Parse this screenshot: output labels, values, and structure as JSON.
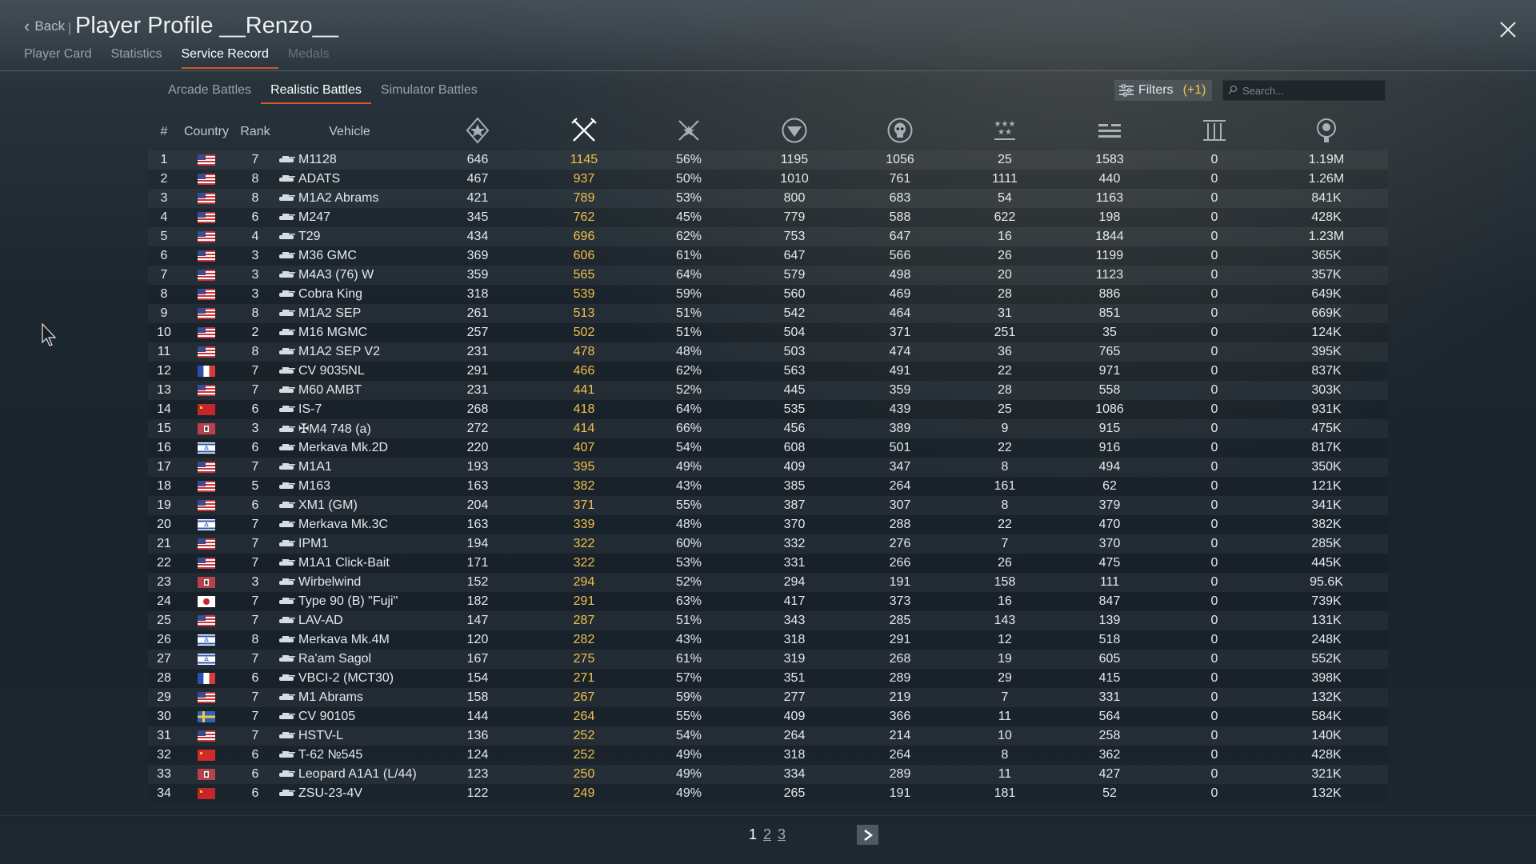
{
  "header": {
    "back_label": "Back",
    "separator": "|",
    "title": "Player Profile __Renzo__",
    "tabs": [
      {
        "label": "Player Card",
        "state": "normal"
      },
      {
        "label": "Statistics",
        "state": "normal"
      },
      {
        "label": "Service Record",
        "state": "active"
      },
      {
        "label": "Medals",
        "state": "disabled"
      }
    ]
  },
  "battle_tabs": [
    "Arcade Battles",
    "Realistic Battles",
    "Simulator Battles"
  ],
  "active_battle_tab": 1,
  "filters": {
    "label": "Filters",
    "count": "(+1)"
  },
  "search": {
    "placeholder": "Search..."
  },
  "columns": {
    "num": "#",
    "country": "Country",
    "rank": "Rank",
    "vehicle": "Vehicle",
    "icons": [
      "victories-icon",
      "battles-icon",
      "win-rate-icon",
      "respawns-icon",
      "deaths-icon",
      "air-targets-destroyed-icon",
      "ground-targets-destroyed-icon",
      "naval-targets-destroyed-icon",
      "silver-lions-icon"
    ]
  },
  "rows": [
    {
      "num": "1",
      "flag": "usa",
      "rank": "7",
      "vehicle": "M1128",
      "v": "646",
      "b": "1145",
      "w": "56%",
      "r": "1195",
      "d": "1056",
      "a": "25",
      "g": "1583",
      "n": "0",
      "s": "1.19M"
    },
    {
      "num": "2",
      "flag": "usa",
      "rank": "8",
      "vehicle": "ADATS",
      "v": "467",
      "b": "937",
      "w": "50%",
      "r": "1010",
      "d": "761",
      "a": "1111",
      "g": "440",
      "n": "0",
      "s": "1.26M"
    },
    {
      "num": "3",
      "flag": "usa",
      "rank": "8",
      "vehicle": "M1A2 Abrams",
      "v": "421",
      "b": "789",
      "w": "53%",
      "r": "800",
      "d": "683",
      "a": "54",
      "g": "1163",
      "n": "0",
      "s": "841K"
    },
    {
      "num": "4",
      "flag": "usa",
      "rank": "6",
      "vehicle": "M247",
      "v": "345",
      "b": "762",
      "w": "45%",
      "r": "779",
      "d": "588",
      "a": "622",
      "g": "198",
      "n": "0",
      "s": "428K"
    },
    {
      "num": "5",
      "flag": "usa",
      "rank": "4",
      "vehicle": "T29",
      "v": "434",
      "b": "696",
      "w": "62%",
      "r": "753",
      "d": "647",
      "a": "16",
      "g": "1844",
      "n": "0",
      "s": "1.23M"
    },
    {
      "num": "6",
      "flag": "usa",
      "rank": "3",
      "vehicle": "M36 GMC",
      "v": "369",
      "b": "606",
      "w": "61%",
      "r": "647",
      "d": "566",
      "a": "26",
      "g": "1199",
      "n": "0",
      "s": "365K"
    },
    {
      "num": "7",
      "flag": "usa",
      "rank": "3",
      "vehicle": "M4A3 (76) W",
      "v": "359",
      "b": "565",
      "w": "64%",
      "r": "579",
      "d": "498",
      "a": "20",
      "g": "1123",
      "n": "0",
      "s": "357K"
    },
    {
      "num": "8",
      "flag": "usa",
      "rank": "3",
      "vehicle": "Cobra King",
      "v": "318",
      "b": "539",
      "w": "59%",
      "r": "560",
      "d": "469",
      "a": "28",
      "g": "886",
      "n": "0",
      "s": "649K"
    },
    {
      "num": "9",
      "flag": "usa",
      "rank": "8",
      "vehicle": "M1A2 SEP",
      "v": "261",
      "b": "513",
      "w": "51%",
      "r": "542",
      "d": "464",
      "a": "31",
      "g": "851",
      "n": "0",
      "s": "669K"
    },
    {
      "num": "10",
      "flag": "usa",
      "rank": "2",
      "vehicle": "M16 MGMC",
      "v": "257",
      "b": "502",
      "w": "51%",
      "r": "504",
      "d": "371",
      "a": "251",
      "g": "35",
      "n": "0",
      "s": "124K"
    },
    {
      "num": "11",
      "flag": "usa",
      "rank": "8",
      "vehicle": "M1A2 SEP V2",
      "v": "231",
      "b": "478",
      "w": "48%",
      "r": "503",
      "d": "474",
      "a": "36",
      "g": "765",
      "n": "0",
      "s": "395K"
    },
    {
      "num": "12",
      "flag": "france",
      "rank": "7",
      "vehicle": "CV 9035NL",
      "v": "291",
      "b": "466",
      "w": "62%",
      "r": "563",
      "d": "491",
      "a": "22",
      "g": "971",
      "n": "0",
      "s": "837K"
    },
    {
      "num": "13",
      "flag": "usa",
      "rank": "7",
      "vehicle": "M60 AMBT",
      "v": "231",
      "b": "441",
      "w": "52%",
      "r": "445",
      "d": "359",
      "a": "28",
      "g": "558",
      "n": "0",
      "s": "303K"
    },
    {
      "num": "14",
      "flag": "ussr",
      "rank": "6",
      "vehicle": "IS-7",
      "v": "268",
      "b": "418",
      "w": "64%",
      "r": "535",
      "d": "439",
      "a": "25",
      "g": "1086",
      "n": "0",
      "s": "931K"
    },
    {
      "num": "15",
      "flag": "germany",
      "rank": "3",
      "vehicle": "✠M4 748 (a)",
      "v": "272",
      "b": "414",
      "w": "66%",
      "r": "456",
      "d": "389",
      "a": "9",
      "g": "915",
      "n": "0",
      "s": "475K"
    },
    {
      "num": "16",
      "flag": "israel",
      "rank": "6",
      "vehicle": "Merkava Mk.2D",
      "v": "220",
      "b": "407",
      "w": "54%",
      "r": "608",
      "d": "501",
      "a": "22",
      "g": "916",
      "n": "0",
      "s": "817K"
    },
    {
      "num": "17",
      "flag": "usa",
      "rank": "7",
      "vehicle": "M1A1",
      "v": "193",
      "b": "395",
      "w": "49%",
      "r": "409",
      "d": "347",
      "a": "8",
      "g": "494",
      "n": "0",
      "s": "350K"
    },
    {
      "num": "18",
      "flag": "usa",
      "rank": "5",
      "vehicle": "M163",
      "v": "163",
      "b": "382",
      "w": "43%",
      "r": "385",
      "d": "264",
      "a": "161",
      "g": "62",
      "n": "0",
      "s": "121K"
    },
    {
      "num": "19",
      "flag": "usa",
      "rank": "6",
      "vehicle": "XM1 (GM)",
      "v": "204",
      "b": "371",
      "w": "55%",
      "r": "387",
      "d": "307",
      "a": "8",
      "g": "379",
      "n": "0",
      "s": "341K"
    },
    {
      "num": "20",
      "flag": "israel",
      "rank": "7",
      "vehicle": "Merkava Mk.3C",
      "v": "163",
      "b": "339",
      "w": "48%",
      "r": "370",
      "d": "288",
      "a": "22",
      "g": "470",
      "n": "0",
      "s": "382K"
    },
    {
      "num": "21",
      "flag": "usa",
      "rank": "7",
      "vehicle": "IPM1",
      "v": "194",
      "b": "322",
      "w": "60%",
      "r": "332",
      "d": "276",
      "a": "7",
      "g": "370",
      "n": "0",
      "s": "285K"
    },
    {
      "num": "22",
      "flag": "usa",
      "rank": "7",
      "vehicle": "M1A1 Click-Bait",
      "v": "171",
      "b": "322",
      "w": "53%",
      "r": "331",
      "d": "266",
      "a": "26",
      "g": "475",
      "n": "0",
      "s": "445K"
    },
    {
      "num": "23",
      "flag": "germany",
      "rank": "3",
      "vehicle": "Wirbelwind",
      "v": "152",
      "b": "294",
      "w": "52%",
      "r": "294",
      "d": "191",
      "a": "158",
      "g": "111",
      "n": "0",
      "s": "95.6K"
    },
    {
      "num": "24",
      "flag": "japan",
      "rank": "7",
      "vehicle": "Type 90 (B) \"Fuji\"",
      "v": "182",
      "b": "291",
      "w": "63%",
      "r": "417",
      "d": "373",
      "a": "16",
      "g": "847",
      "n": "0",
      "s": "739K"
    },
    {
      "num": "25",
      "flag": "usa",
      "rank": "7",
      "vehicle": "LAV-AD",
      "v": "147",
      "b": "287",
      "w": "51%",
      "r": "343",
      "d": "285",
      "a": "143",
      "g": "139",
      "n": "0",
      "s": "131K"
    },
    {
      "num": "26",
      "flag": "israel",
      "rank": "8",
      "vehicle": "Merkava Mk.4M",
      "v": "120",
      "b": "282",
      "w": "43%",
      "r": "318",
      "d": "291",
      "a": "12",
      "g": "518",
      "n": "0",
      "s": "248K"
    },
    {
      "num": "27",
      "flag": "israel",
      "rank": "7",
      "vehicle": "Ra'am Sagol",
      "v": "167",
      "b": "275",
      "w": "61%",
      "r": "319",
      "d": "268",
      "a": "19",
      "g": "605",
      "n": "0",
      "s": "552K"
    },
    {
      "num": "28",
      "flag": "france",
      "rank": "6",
      "vehicle": "VBCI-2 (MCT30)",
      "v": "154",
      "b": "271",
      "w": "57%",
      "r": "351",
      "d": "289",
      "a": "29",
      "g": "415",
      "n": "0",
      "s": "398K"
    },
    {
      "num": "29",
      "flag": "usa",
      "rank": "7",
      "vehicle": "M1 Abrams",
      "v": "158",
      "b": "267",
      "w": "59%",
      "r": "277",
      "d": "219",
      "a": "7",
      "g": "331",
      "n": "0",
      "s": "132K"
    },
    {
      "num": "30",
      "flag": "sweden",
      "rank": "7",
      "vehicle": "CV 90105",
      "v": "144",
      "b": "264",
      "w": "55%",
      "r": "409",
      "d": "366",
      "a": "11",
      "g": "564",
      "n": "0",
      "s": "584K"
    },
    {
      "num": "31",
      "flag": "usa",
      "rank": "7",
      "vehicle": "HSTV-L",
      "v": "136",
      "b": "252",
      "w": "54%",
      "r": "264",
      "d": "214",
      "a": "10",
      "g": "258",
      "n": "0",
      "s": "140K"
    },
    {
      "num": "32",
      "flag": "china",
      "rank": "6",
      "vehicle": "T-62 №545",
      "v": "124",
      "b": "252",
      "w": "49%",
      "r": "318",
      "d": "264",
      "a": "8",
      "g": "362",
      "n": "0",
      "s": "428K"
    },
    {
      "num": "33",
      "flag": "germany",
      "rank": "6",
      "vehicle": "Leopard A1A1 (L/44)",
      "v": "123",
      "b": "250",
      "w": "49%",
      "r": "334",
      "d": "289",
      "a": "11",
      "g": "427",
      "n": "0",
      "s": "321K"
    },
    {
      "num": "34",
      "flag": "ussr",
      "rank": "6",
      "vehicle": "ZSU-23-4V",
      "v": "122",
      "b": "249",
      "w": "49%",
      "r": "265",
      "d": "191",
      "a": "181",
      "g": "52",
      "n": "0",
      "s": "132K"
    }
  ],
  "pagination": {
    "pages": [
      "1",
      "2",
      "3"
    ],
    "current": "1"
  },
  "colors": {
    "accent": "#d4572b",
    "battles": "#f0c14b",
    "filter_count": "#f4c542"
  }
}
